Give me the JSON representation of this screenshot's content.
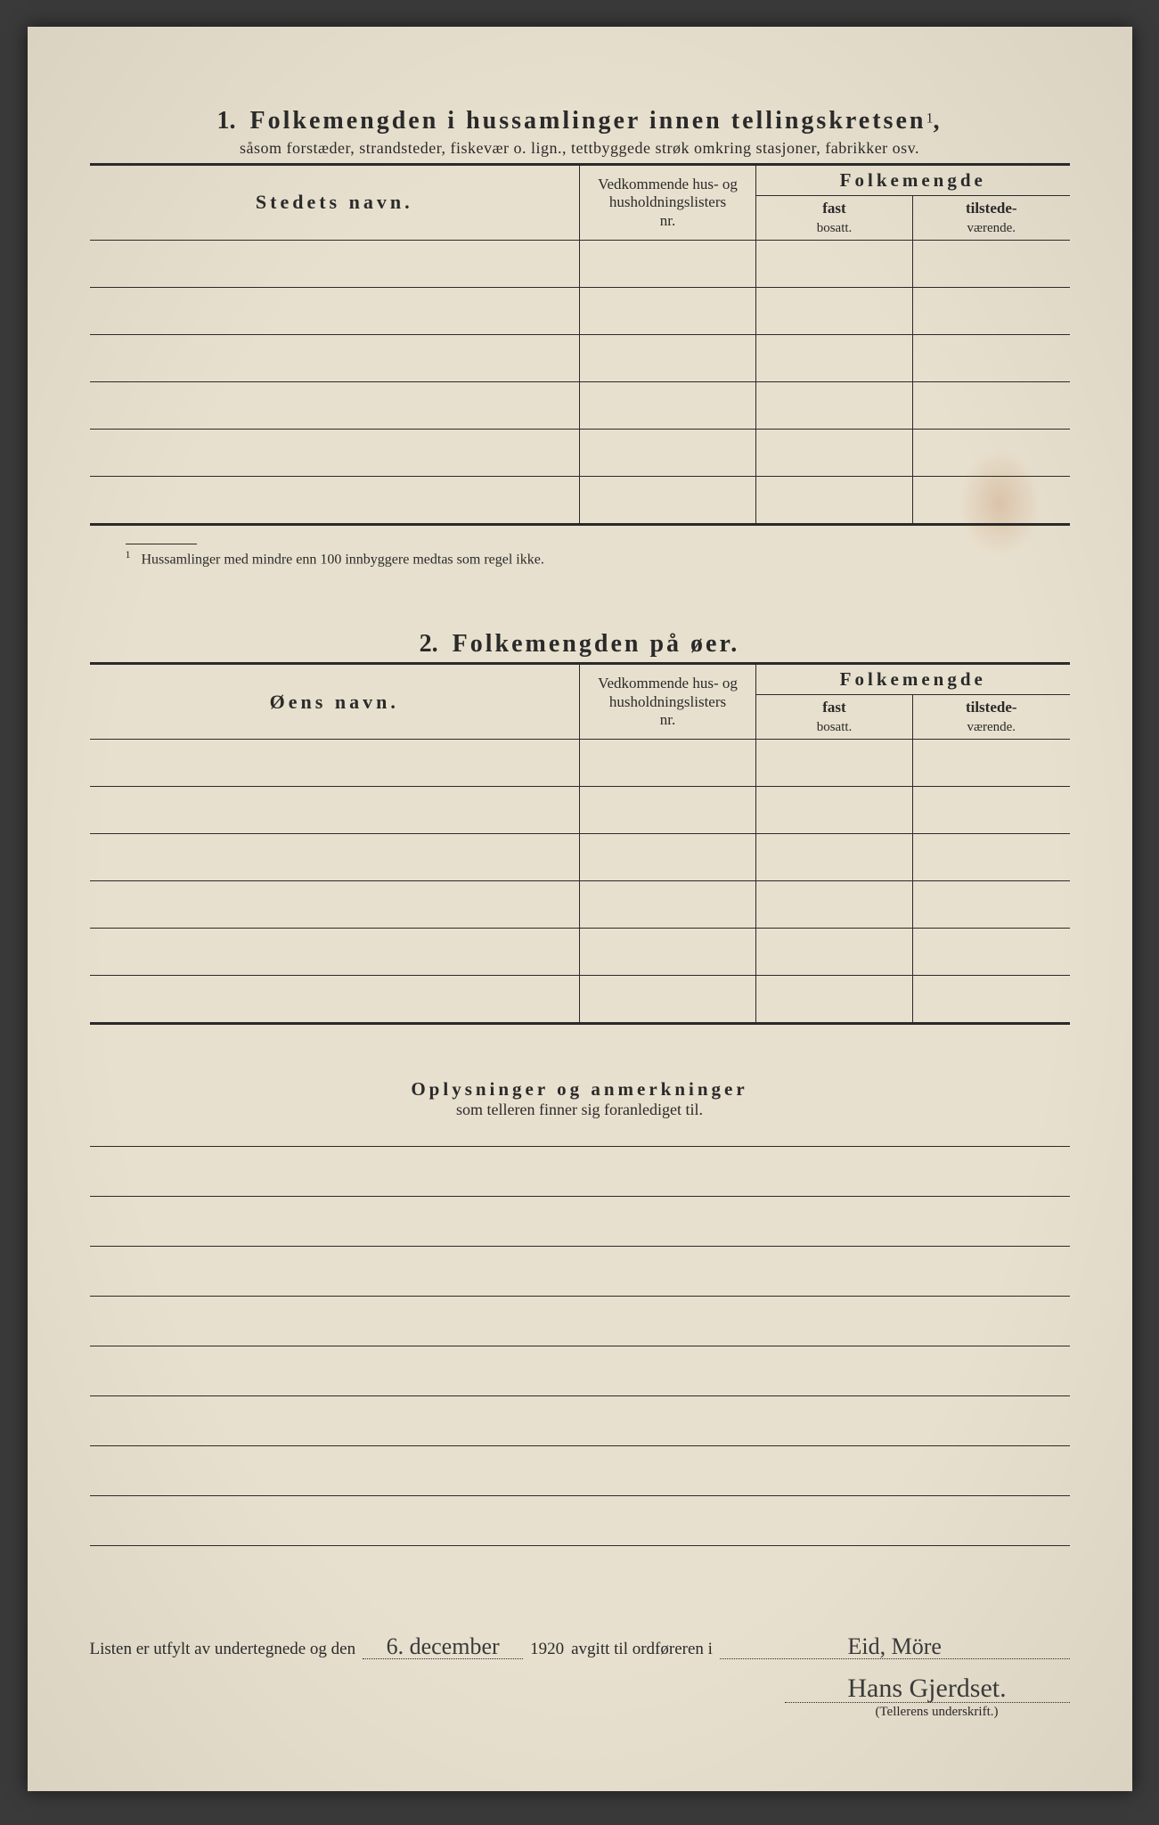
{
  "colors": {
    "paper": "#e8e0ce",
    "ink": "#2a2a2a",
    "background": "#3a3a3a",
    "stain": "#b46e3c"
  },
  "section1": {
    "number": "1.",
    "title": "Folkemengden i hussamlinger innen tellingskretsen",
    "title_sup": "1",
    "title_punct": ",",
    "subtitle": "såsom forstæder, strandsteder, fiskevær o. lign., tettbyggede strøk omkring stasjoner, fabrikker osv.",
    "col_name": "Stedets navn.",
    "col_vedk_l1": "Vedkommende hus- og",
    "col_vedk_l2": "husholdningslisters",
    "col_vedk_l3": "nr.",
    "col_folk": "Folkemengde",
    "col_fast_l1": "fast",
    "col_fast_l2": "bosatt.",
    "col_tilst_l1": "tilstede-",
    "col_tilst_l2": "værende.",
    "row_count": 6,
    "footnote_marker": "1",
    "footnote": "Hussamlinger med mindre enn 100 innbyggere medtas som regel ikke."
  },
  "section2": {
    "number": "2.",
    "title": "Folkemengden på øer.",
    "col_name": "Øens navn.",
    "col_vedk_l1": "Vedkommende hus- og",
    "col_vedk_l2": "husholdningslisters",
    "col_vedk_l3": "nr.",
    "col_folk": "Folkemengde",
    "col_fast_l1": "fast",
    "col_fast_l2": "bosatt.",
    "col_tilst_l1": "tilstede-",
    "col_tilst_l2": "værende.",
    "row_count": 6
  },
  "oplys": {
    "title": "Oplysninger og anmerkninger",
    "subtitle": "som telleren finner sig foranlediget til.",
    "line_count": 8
  },
  "signature": {
    "prefix": "Listen er utfylt av undertegnede og den",
    "date_handwritten": "6. december",
    "year": "1920",
    "mid": "avgitt til ordføreren i",
    "place_handwritten": "Eid, Möre",
    "name_handwritten": "Hans Gjerdset.",
    "caption": "(Tellerens underskrift.)"
  }
}
